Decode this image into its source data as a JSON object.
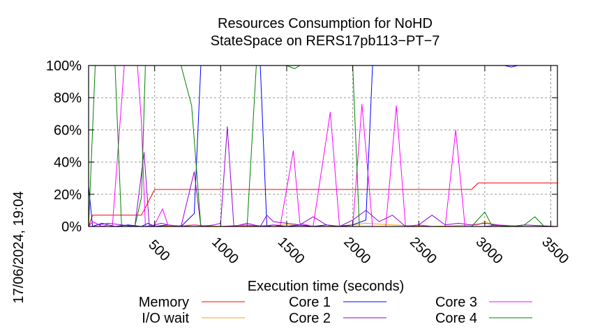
{
  "chart_data": {
    "type": "line",
    "title": [
      "Resources Consumption for NoHD",
      "StateSpace on RERS17pb113−PT−7"
    ],
    "xlabel": "Execution time (seconds)",
    "ylabel": "",
    "side_label": "17/06/2024, 19:04",
    "xlim": [
      0,
      3550
    ],
    "ylim": [
      0,
      100
    ],
    "x_ticks": [
      500,
      1000,
      1500,
      2000,
      2500,
      3000,
      3500
    ],
    "y_ticks": [
      {
        "v": 0,
        "label": "0%"
      },
      {
        "v": 20,
        "label": "20%"
      },
      {
        "v": 40,
        "label": "40%"
      },
      {
        "v": 60,
        "label": "60%"
      },
      {
        "v": 80,
        "label": "80%"
      },
      {
        "v": 100,
        "label": "100%"
      }
    ],
    "grid": true,
    "legend_position": "bottom",
    "series": [
      {
        "name": "Memory",
        "color": "#ff0000",
        "points": [
          [
            0,
            0
          ],
          [
            30,
            7
          ],
          [
            100,
            7
          ],
          [
            200,
            7
          ],
          [
            300,
            7
          ],
          [
            400,
            7
          ],
          [
            450,
            15
          ],
          [
            500,
            23
          ],
          [
            600,
            23
          ],
          [
            800,
            23
          ],
          [
            1000,
            23
          ],
          [
            1300,
            23
          ],
          [
            1600,
            23
          ],
          [
            2000,
            23
          ],
          [
            2500,
            23
          ],
          [
            2900,
            23
          ],
          [
            2950,
            27
          ],
          [
            3100,
            27
          ],
          [
            3300,
            27
          ],
          [
            3550,
            27
          ]
        ]
      },
      {
        "name": "I/O wait",
        "color": "#ffa500",
        "points": [
          [
            0,
            0
          ],
          [
            500,
            0
          ],
          [
            800,
            1
          ],
          [
            1000,
            0
          ],
          [
            1500,
            1
          ],
          [
            1800,
            0
          ],
          [
            2000,
            1
          ],
          [
            2100,
            2
          ],
          [
            2300,
            1
          ],
          [
            2600,
            0
          ],
          [
            2950,
            1
          ],
          [
            3000,
            3
          ],
          [
            3100,
            0
          ],
          [
            3550,
            0
          ]
        ]
      },
      {
        "name": "Core 1",
        "color": "#0000ff",
        "points": [
          [
            0,
            25
          ],
          [
            30,
            0
          ],
          [
            100,
            2
          ],
          [
            200,
            0
          ],
          [
            300,
            1
          ],
          [
            400,
            0
          ],
          [
            450,
            2
          ],
          [
            500,
            0
          ],
          [
            600,
            1
          ],
          [
            700,
            0
          ],
          [
            800,
            8
          ],
          [
            850,
            100
          ],
          [
            900,
            100
          ],
          [
            1000,
            100
          ],
          [
            1100,
            100
          ],
          [
            1200,
            100
          ],
          [
            1300,
            100
          ],
          [
            1350,
            0
          ],
          [
            1400,
            1
          ],
          [
            1500,
            0
          ],
          [
            1600,
            1
          ],
          [
            1700,
            0
          ],
          [
            1800,
            1
          ],
          [
            1900,
            0
          ],
          [
            2000,
            1
          ],
          [
            2100,
            4
          ],
          [
            2150,
            100
          ],
          [
            2300,
            100
          ],
          [
            2500,
            100
          ],
          [
            2700,
            100
          ],
          [
            2900,
            100
          ],
          [
            3000,
            100
          ],
          [
            3150,
            100
          ],
          [
            3200,
            99
          ],
          [
            3250,
            100
          ],
          [
            3400,
            100
          ],
          [
            3550,
            100
          ]
        ]
      },
      {
        "name": "Core 2",
        "color": "#9400d3",
        "points": [
          [
            0,
            0
          ],
          [
            30,
            3
          ],
          [
            80,
            1
          ],
          [
            150,
            2
          ],
          [
            250,
            1
          ],
          [
            350,
            0
          ],
          [
            420,
            46
          ],
          [
            460,
            0
          ],
          [
            550,
            2
          ],
          [
            600,
            1
          ],
          [
            700,
            0
          ],
          [
            800,
            34
          ],
          [
            850,
            0
          ],
          [
            950,
            1
          ],
          [
            1000,
            2
          ],
          [
            1050,
            62
          ],
          [
            1100,
            0
          ],
          [
            1200,
            2
          ],
          [
            1300,
            0
          ],
          [
            1350,
            7
          ],
          [
            1400,
            3
          ],
          [
            1500,
            2
          ],
          [
            1600,
            1
          ],
          [
            1700,
            6
          ],
          [
            1800,
            1
          ],
          [
            1900,
            0
          ],
          [
            2000,
            4
          ],
          [
            2100,
            10
          ],
          [
            2200,
            3
          ],
          [
            2300,
            7
          ],
          [
            2400,
            0
          ],
          [
            2500,
            1
          ],
          [
            2600,
            7
          ],
          [
            2700,
            1
          ],
          [
            2800,
            2
          ],
          [
            2900,
            1
          ],
          [
            3000,
            2
          ],
          [
            3100,
            1
          ],
          [
            3200,
            0
          ],
          [
            3300,
            1
          ],
          [
            3550,
            0
          ]
        ]
      },
      {
        "name": "Core 3",
        "color": "#ff00ff",
        "points": [
          [
            0,
            0
          ],
          [
            30,
            3
          ],
          [
            100,
            0
          ],
          [
            150,
            1
          ],
          [
            180,
            0
          ],
          [
            270,
            100
          ],
          [
            370,
            100
          ],
          [
            400,
            65
          ],
          [
            430,
            0
          ],
          [
            500,
            1
          ],
          [
            560,
            11
          ],
          [
            600,
            1
          ],
          [
            700,
            0
          ],
          [
            800,
            1
          ],
          [
            900,
            0
          ],
          [
            1000,
            0
          ],
          [
            1200,
            1
          ],
          [
            1300,
            0
          ],
          [
            1400,
            1
          ],
          [
            1450,
            0
          ],
          [
            1550,
            47
          ],
          [
            1600,
            2
          ],
          [
            1700,
            0
          ],
          [
            1830,
            71
          ],
          [
            1900,
            0
          ],
          [
            2000,
            0
          ],
          [
            2070,
            76
          ],
          [
            2150,
            0
          ],
          [
            2250,
            0
          ],
          [
            2330,
            75
          ],
          [
            2400,
            0
          ],
          [
            2500,
            1
          ],
          [
            2600,
            0
          ],
          [
            2700,
            0
          ],
          [
            2780,
            60
          ],
          [
            2850,
            0
          ],
          [
            3000,
            0
          ],
          [
            3100,
            1
          ],
          [
            3300,
            0
          ],
          [
            3550,
            0
          ]
        ]
      },
      {
        "name": "Core 4",
        "color": "#008000",
        "points": [
          [
            0,
            0
          ],
          [
            50,
            100
          ],
          [
            100,
            100
          ],
          [
            200,
            100
          ],
          [
            250,
            0
          ],
          [
            350,
            0
          ],
          [
            400,
            18
          ],
          [
            430,
            100
          ],
          [
            500,
            100
          ],
          [
            600,
            100
          ],
          [
            700,
            100
          ],
          [
            780,
            75
          ],
          [
            850,
            0
          ],
          [
            950,
            0
          ],
          [
            1000,
            0
          ],
          [
            1100,
            0
          ],
          [
            1200,
            0
          ],
          [
            1270,
            100
          ],
          [
            1300,
            100
          ],
          [
            1400,
            100
          ],
          [
            1500,
            100
          ],
          [
            1560,
            98
          ],
          [
            1600,
            100
          ],
          [
            1700,
            100
          ],
          [
            1800,
            100
          ],
          [
            1900,
            100
          ],
          [
            2000,
            100
          ],
          [
            2050,
            0
          ],
          [
            2100,
            0
          ],
          [
            2200,
            0
          ],
          [
            2500,
            0
          ],
          [
            2900,
            0
          ],
          [
            3000,
            9
          ],
          [
            3050,
            1
          ],
          [
            3200,
            0
          ],
          [
            3300,
            1
          ],
          [
            3380,
            6
          ],
          [
            3450,
            0
          ],
          [
            3550,
            0
          ]
        ]
      }
    ]
  }
}
